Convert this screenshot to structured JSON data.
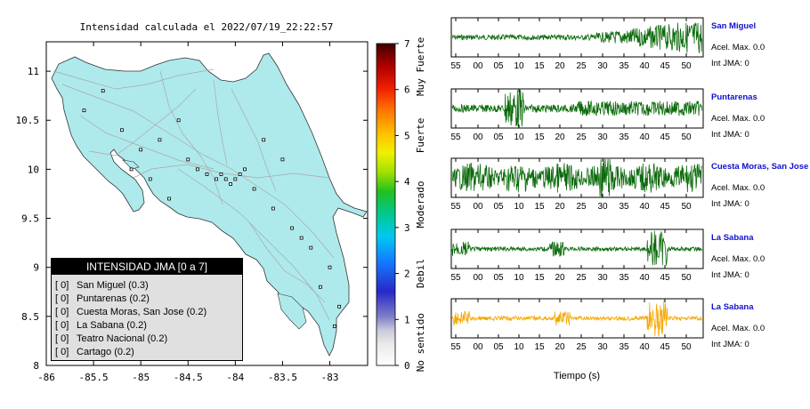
{
  "map": {
    "title": "Intensidad calculada el 2022/07/19_22:22:57",
    "x_ticks": [
      "-86",
      "-85.5",
      "-85",
      "-84.5",
      "-84",
      "-83.5",
      "-83"
    ],
    "y_ticks": [
      "11",
      "10.5",
      "10",
      "9.5",
      "9",
      "8.5",
      "8"
    ],
    "xlim": [
      -86,
      -82.6
    ],
    "ylim": [
      8,
      11.3
    ],
    "land_color": "#aeeaec",
    "ocean_color": "#ffffff"
  },
  "colorbar": {
    "ticks": [
      "0",
      "1",
      "2",
      "3",
      "4",
      "5",
      "6",
      "7"
    ],
    "labels": [
      "No sentido",
      "Debil",
      "Moderado",
      "Fuerte",
      "Muy Fuerte"
    ]
  },
  "legend": {
    "title": "INTENSIDAD JMA [0 a 7]",
    "rows": [
      {
        "tag": "[ 0]",
        "text": "San Miguel (0.3)"
      },
      {
        "tag": "[ 0]",
        "text": "Puntarenas (0.2)"
      },
      {
        "tag": "[ 0]",
        "text": "Cuesta Moras, San Jose (0.2)"
      },
      {
        "tag": "[ 0]",
        "text": "La Sabana (0.2)"
      },
      {
        "tag": "[ 0]",
        "text": "Teatro Nacional (0.2)"
      },
      {
        "tag": "[ 0]",
        "text": "Cartago (0.2)"
      }
    ]
  },
  "traces": {
    "time_ticks": [
      "55",
      "00",
      "05",
      "10",
      "15",
      "20",
      "25",
      "30",
      "35",
      "40",
      "45",
      "50"
    ],
    "xlabel": "Tiempo (s)",
    "colors": {
      "normal": "#0a6a0a",
      "highlight": "#f5a800",
      "station_name": "#1010d0"
    },
    "items": [
      {
        "station": "San Miguel",
        "accel": "Acel. Max. 0.0",
        "jma": "Int JMA: 0",
        "color": "#0a6a0a"
      },
      {
        "station": "Puntarenas",
        "accel": "Acel. Max. 0.0",
        "jma": "Int JMA: 0",
        "color": "#0a6a0a"
      },
      {
        "station": "Cuesta Moras, San Jose",
        "accel": "Acel. Max. 0.0",
        "jma": "Int JMA: 0",
        "color": "#0a6a0a"
      },
      {
        "station": "La Sabana",
        "accel": "Acel. Max. 0.0",
        "jma": "Int JMA: 0",
        "color": "#0a6a0a"
      },
      {
        "station": "La Sabana",
        "accel": "Acel. Max. 0.0",
        "jma": "Int JMA: 0",
        "color": "#f5a800"
      }
    ]
  },
  "chart_data": [
    {
      "type": "scatter",
      "title": "Intensidad calculada el 2022/07/19_22:22:57",
      "xlabel": "",
      "ylabel": "",
      "xlim": [
        -86,
        -82.6
      ],
      "ylim": [
        8,
        11.3
      ],
      "grid": false,
      "legend_placement": "bottom-left",
      "series": [
        {
          "name": "INTENSIDAD JMA [0 a 7]",
          "x": [
            -85.6,
            -85.4,
            -85.2,
            -85.0,
            -84.8,
            -84.6,
            -84.5,
            -84.4,
            -84.3,
            -84.2,
            -84.15,
            -84.1,
            -84.05,
            -84.0,
            -83.95,
            -83.9,
            -83.8,
            -83.6,
            -83.4,
            -83.2,
            -83.0,
            -82.9,
            -84.7,
            -84.9,
            -85.1,
            -83.7,
            -83.5,
            -83.3,
            -83.1,
            -82.95
          ],
          "y": [
            10.6,
            10.8,
            10.4,
            10.2,
            10.3,
            10.5,
            10.1,
            10.0,
            9.95,
            9.9,
            9.95,
            9.9,
            9.85,
            9.9,
            9.95,
            10.0,
            9.8,
            9.6,
            9.4,
            9.2,
            9.0,
            8.6,
            9.7,
            9.9,
            10.0,
            10.3,
            10.1,
            9.3,
            8.8,
            8.4
          ],
          "values": [
            0,
            0,
            0,
            0,
            0,
            0,
            0,
            0,
            0,
            0,
            0,
            0,
            0,
            0,
            0,
            0,
            0,
            0,
            0,
            0,
            0,
            0,
            0,
            0,
            0,
            0,
            0,
            0,
            0,
            0
          ]
        }
      ]
    },
    {
      "type": "line",
      "title": "",
      "xlabel": "Tiempo (s)",
      "ylabel": "",
      "x_tick_labels": [
        "55",
        "00",
        "05",
        "10",
        "15",
        "20",
        "25",
        "30",
        "35",
        "40",
        "45",
        "50"
      ],
      "series": [
        {
          "name": "San Miguel",
          "accel_max": 0.0,
          "jma": 0
        },
        {
          "name": "Puntarenas",
          "accel_max": 0.0,
          "jma": 0
        },
        {
          "name": "Cuesta Moras, San Jose",
          "accel_max": 0.0,
          "jma": 0
        },
        {
          "name": "La Sabana",
          "accel_max": 0.0,
          "jma": 0
        },
        {
          "name": "La Sabana",
          "accel_max": 0.0,
          "jma": 0
        }
      ]
    }
  ]
}
